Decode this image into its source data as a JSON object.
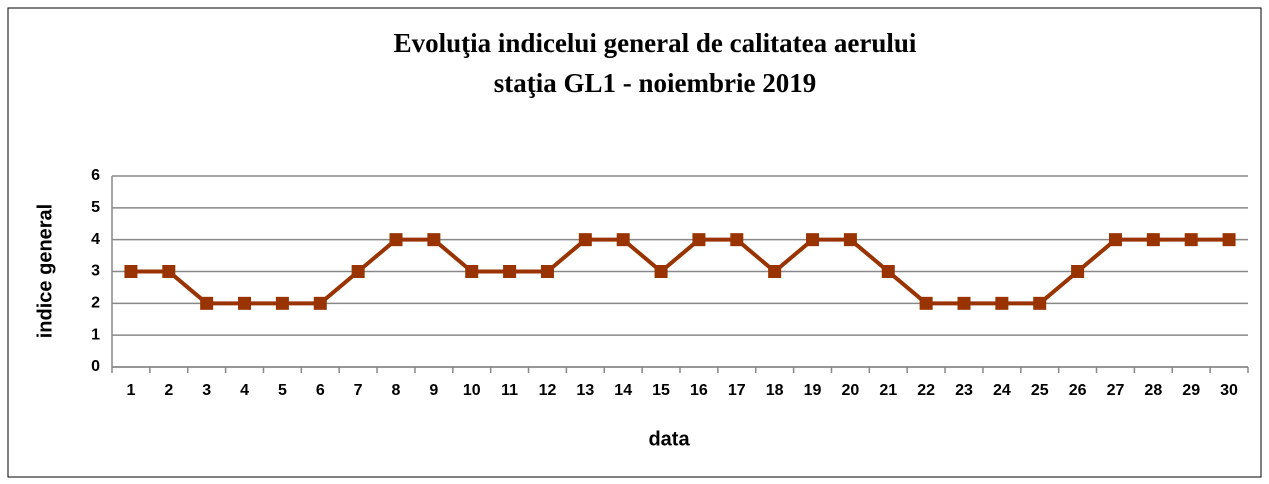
{
  "chart_data": {
    "type": "line",
    "title": "Evoluţia indicelui general de calitatea aerului",
    "subtitle": "staţia GL1 - noiembrie 2019",
    "x_label": "data",
    "y_label": "indice general",
    "categories": [
      "1",
      "2",
      "3",
      "4",
      "5",
      "6",
      "7",
      "8",
      "9",
      "10",
      "11",
      "12",
      "13",
      "14",
      "15",
      "16",
      "17",
      "18",
      "19",
      "20",
      "21",
      "22",
      "23",
      "24",
      "25",
      "26",
      "27",
      "28",
      "29",
      "30"
    ],
    "values": [
      3,
      3,
      2,
      2,
      2,
      2,
      3,
      4,
      4,
      3,
      3,
      3,
      4,
      4,
      3,
      4,
      4,
      3,
      4,
      4,
      3,
      2,
      2,
      2,
      2,
      3,
      4,
      4,
      4,
      4
    ],
    "color": "#993300",
    "ylim": [
      0,
      6
    ],
    "yticks": [
      0,
      1,
      2,
      3,
      4,
      5,
      6
    ],
    "grid": true
  }
}
